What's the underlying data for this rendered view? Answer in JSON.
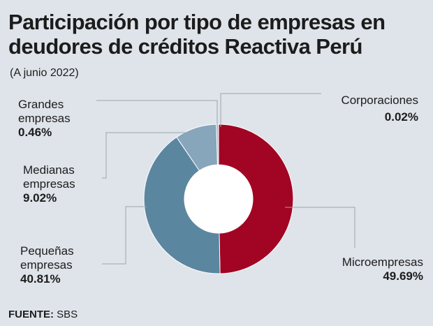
{
  "header": {
    "title": "Participación por tipo de empresas en deudores de créditos Reactiva Perú",
    "subtitle": "(A junio 2022)"
  },
  "source": {
    "label": "FUENTE:",
    "value": "SBS"
  },
  "chart_data": {
    "type": "pie",
    "donut": true,
    "title": "Participación por tipo de empresas en deudores de créditos Reactiva Perú",
    "subtitle": "(A junio 2022)",
    "slices": [
      {
        "name": "Microempresas",
        "value": 49.69,
        "display": "49.69%",
        "color": "#a10523"
      },
      {
        "name": "Pequeñas empresas",
        "value": 40.81,
        "display": "40.81%",
        "color": "#5b86a0"
      },
      {
        "name": "Medianas empresas",
        "value": 9.02,
        "display": "9.02%",
        "color": "#87a5bb"
      },
      {
        "name": "Grandes empresas",
        "value": 0.46,
        "display": "0.46%",
        "color": "#9eb5c8"
      },
      {
        "name": "Corporaciones",
        "value": 0.02,
        "display": "0.02%",
        "color": "#c8d3de"
      }
    ],
    "labels": {
      "grandes": {
        "line1": "Grandes",
        "line2": "empresas",
        "value": "0.46%"
      },
      "medianas": {
        "line1": "Medianas",
        "line2": "empresas",
        "value": "9.02%"
      },
      "pequenas": {
        "line1": "Pequeñas",
        "line2": "empresas",
        "value": "40.81%"
      },
      "micro": {
        "line1": "Microempresas",
        "value": "49.69%"
      },
      "corp": {
        "line1": "Corporaciones",
        "value": "0.02%"
      }
    }
  }
}
